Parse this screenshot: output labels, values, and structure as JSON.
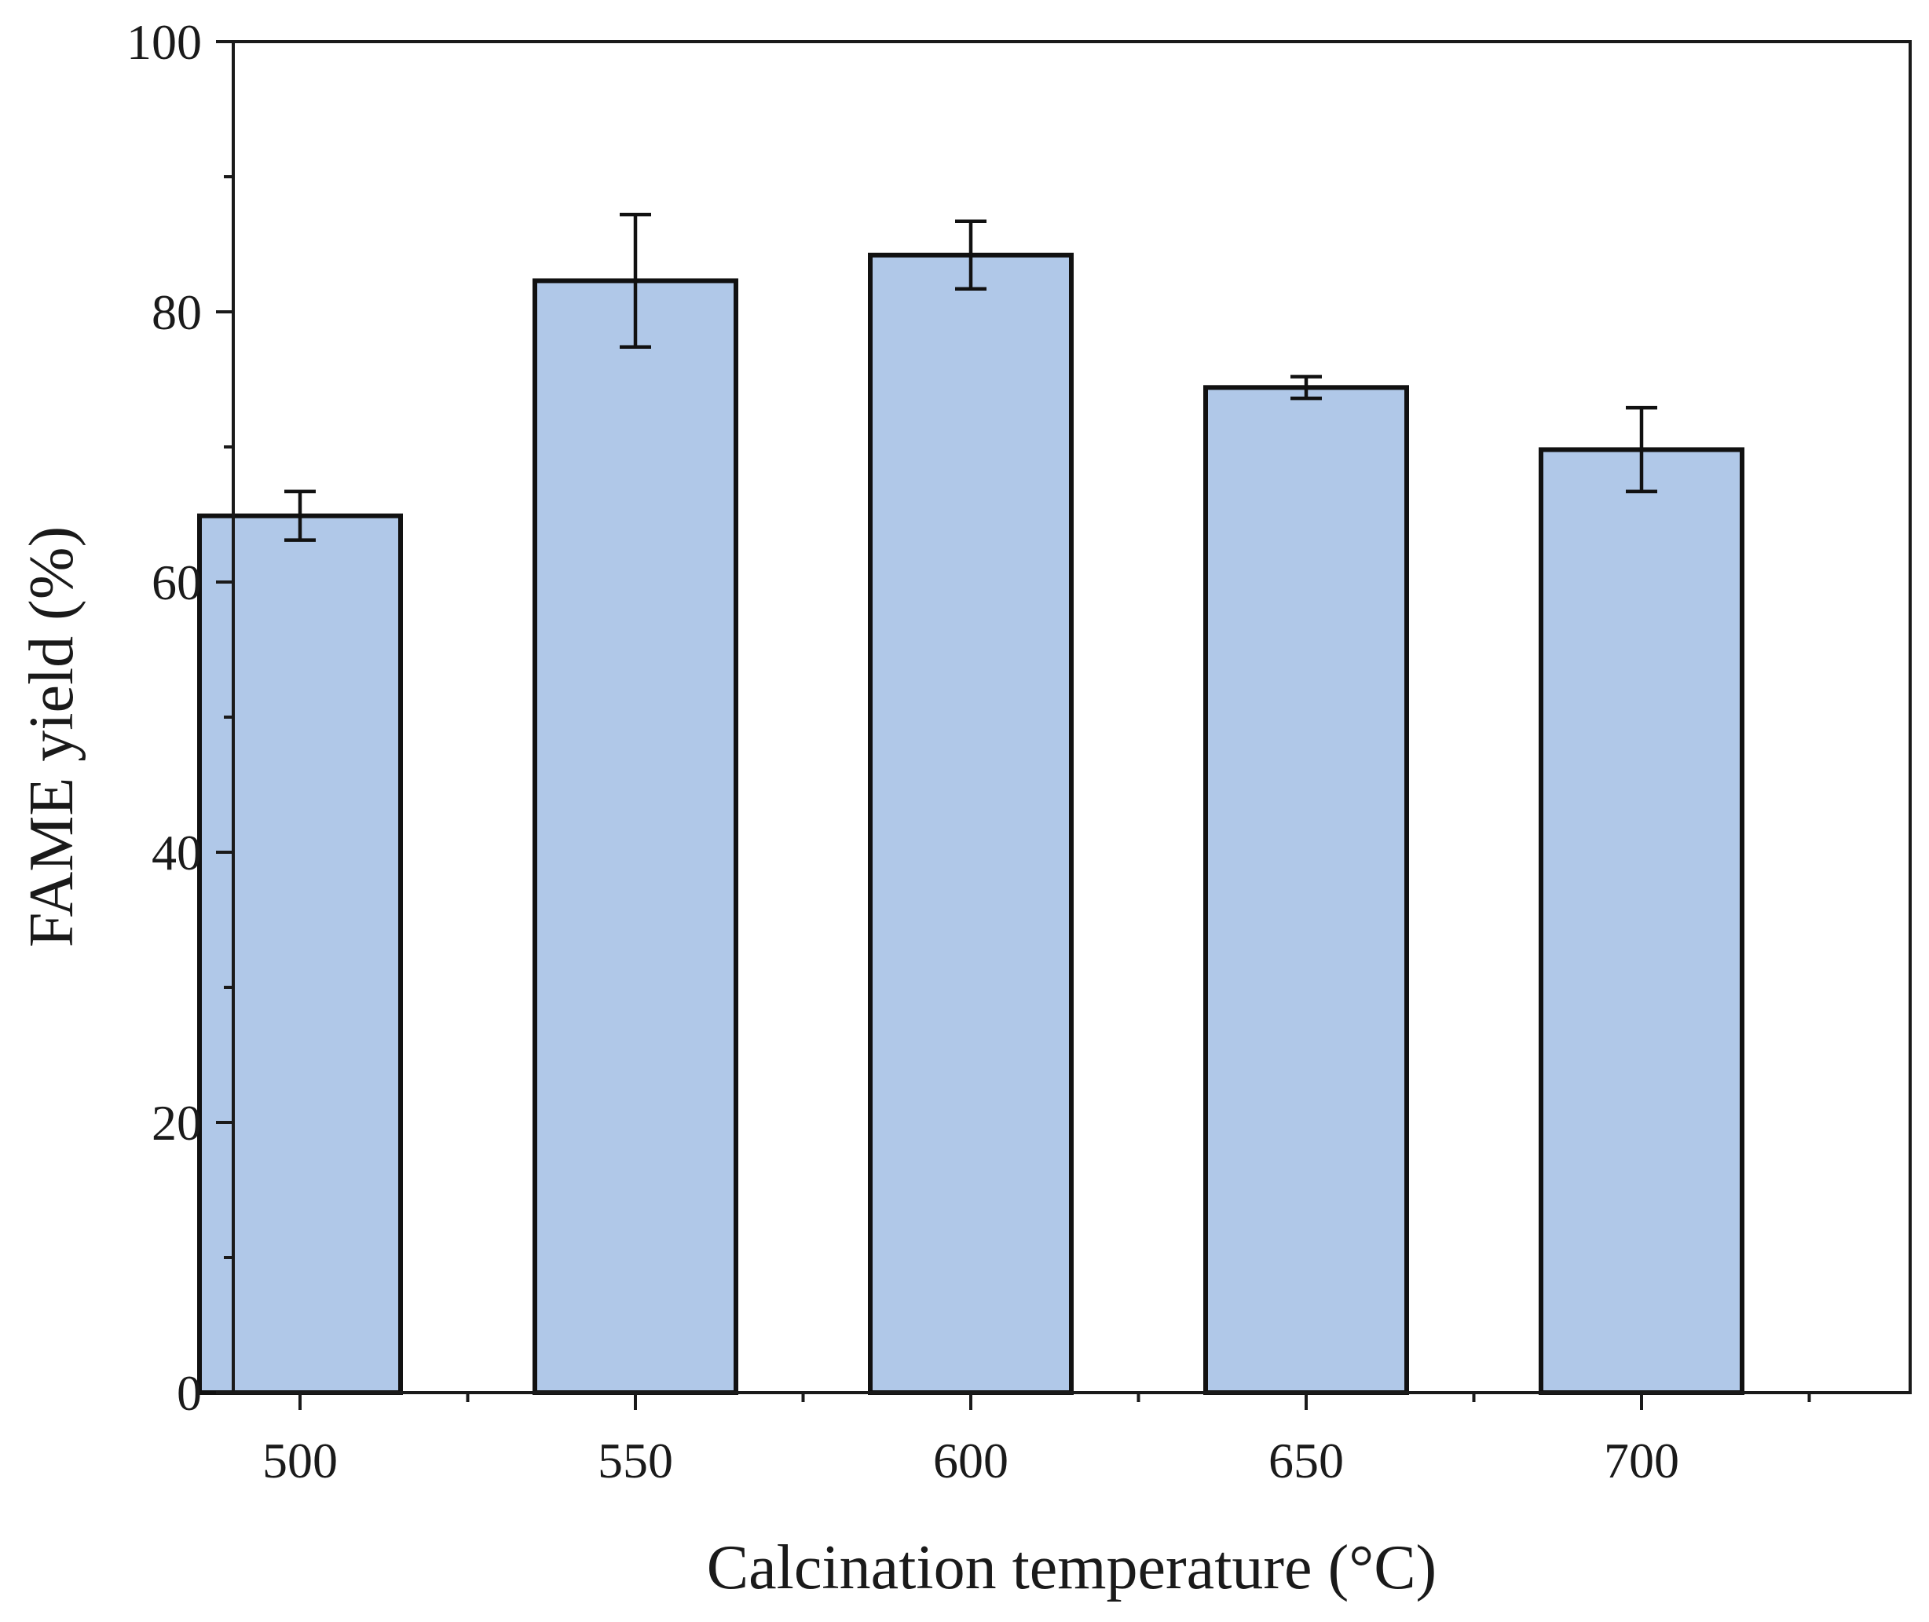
{
  "chart_data": {
    "type": "bar",
    "title": "",
    "xlabel": "Calcination temperature (°C)",
    "ylabel": "FAME yield (%)",
    "categories": [
      "500",
      "550",
      "600",
      "650",
      "700"
    ],
    "values": [
      64.9,
      82.3,
      84.2,
      74.4,
      69.8
    ],
    "errors": [
      1.8,
      4.9,
      2.5,
      0.8,
      3.1
    ],
    "ylim": [
      0,
      100
    ],
    "yticks": [
      0,
      20,
      40,
      60,
      80,
      100
    ],
    "yticks_minor": [
      10,
      30,
      50,
      70,
      90
    ],
    "bar_color": "#b0c8e8",
    "edge_color": "#111111",
    "grid": false
  }
}
